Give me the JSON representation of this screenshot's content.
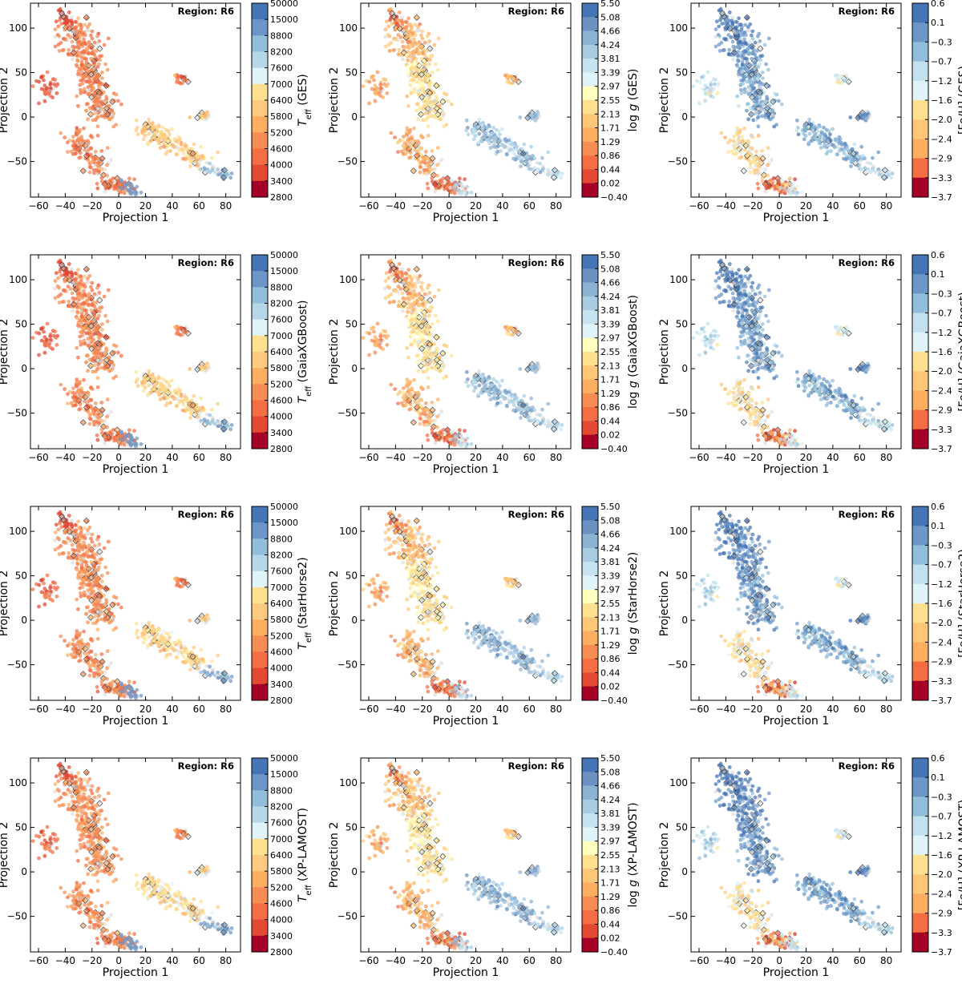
{
  "chart_data": {
    "type": "scatter",
    "layout": "4x3 grid",
    "xlabel": "Projection 1",
    "ylabel": "Projection 2",
    "xlim": [
      -66,
      91
    ],
    "ylim": [
      -90,
      128
    ],
    "xticks": [
      -60,
      -40,
      -20,
      0,
      20,
      40,
      60,
      80
    ],
    "yticks": [
      -50,
      0,
      50,
      100
    ],
    "region_text": "Region:  R6",
    "sources": [
      "GES",
      "GaiaXGBoost",
      "StarHorse2",
      "XP-LAMOST"
    ],
    "parameters": [
      {
        "key": "teff",
        "label_prefix": "T",
        "label_sub": "eff",
        "ticks": [
          "50000",
          "15000",
          "8800",
          "8200",
          "7600",
          "7000",
          "6400",
          "5800",
          "5200",
          "4600",
          "4000",
          "3400",
          "2800"
        ],
        "colors": [
          "#4575b4",
          "#6d96c8",
          "#91bfdb",
          "#b6d7e8",
          "#e0f3f8",
          "#fee090",
          "#fec980",
          "#fdae61",
          "#f68d52",
          "#f46d43",
          "#e34933",
          "#d73027",
          "#a50026"
        ]
      },
      {
        "key": "logg",
        "label_prefix": "log ",
        "label_ital": "g",
        "ticks": [
          "5.50",
          "5.08",
          "4.66",
          "4.24",
          "3.81",
          "3.39",
          "2.97",
          "2.55",
          "2.13",
          "1.71",
          "1.29",
          "0.86",
          "0.44",
          "0.02",
          "-0.40"
        ],
        "colors": [
          "#4575b4",
          "#6c92c4",
          "#8cb2d4",
          "#a8cde3",
          "#c7e3ef",
          "#e0f3f8",
          "#ffffbf",
          "#fee090",
          "#fdc777",
          "#fdae61",
          "#f68d52",
          "#f46d43",
          "#e34933",
          "#d73027",
          "#a50026"
        ]
      },
      {
        "key": "feh",
        "label_prefix": "[Fe/H]",
        "ticks": [
          "0.6",
          "0.1",
          "-0.3",
          "-0.7",
          "-1.2",
          "-1.6",
          "-2.0",
          "-2.4",
          "-2.9",
          "-3.3",
          "-3.7"
        ],
        "colors": [
          "#4575b4",
          "#6c97c7",
          "#91bfdb",
          "#c2e1ed",
          "#e0f3f8",
          "#fee090",
          "#fdc777",
          "#fdae61",
          "#f46d43",
          "#d73027",
          "#a50026"
        ]
      }
    ],
    "clusters": [
      {
        "name": "upper-left-arm",
        "x": [
          -35,
          -22
        ],
        "y": [
          108,
          58
        ],
        "n": 150,
        "spread": 7,
        "teff": 4700,
        "logg": 1.9,
        "feh": 0.25
      },
      {
        "name": "upper-arm-tip",
        "x": [
          -44,
          -38
        ],
        "y": [
          120,
          102
        ],
        "n": 30,
        "spread": 3,
        "teff": 3700,
        "logg": 1.2,
        "feh": 0.3
      },
      {
        "name": "central-column",
        "x": [
          -24,
          -12
        ],
        "y": [
          60,
          -2
        ],
        "n": 220,
        "spread": 6,
        "teff": 4800,
        "logg": 2.6,
        "feh": 0.0
      },
      {
        "name": "left-patch",
        "x": [
          -57,
          -50
        ],
        "y": [
          46,
          20
        ],
        "n": 40,
        "spread": 4,
        "teff": 4000,
        "logg": 1.6,
        "feh": -0.8
      },
      {
        "name": "lower-left-group",
        "x": [
          -30,
          -15
        ],
        "y": [
          -18,
          -62
        ],
        "n": 120,
        "spread": 5,
        "teff": 4700,
        "logg": 1.8,
        "feh": -1.6
      },
      {
        "name": "bottom-group",
        "x": [
          -12,
          8
        ],
        "y": [
          -72,
          -82
        ],
        "n": 70,
        "spread": 4,
        "teff": 4500,
        "logg": 1.0,
        "feh": -2.6
      },
      {
        "name": "diagonal-dwarf-band",
        "x": [
          18,
          62
        ],
        "y": [
          -10,
          -50
        ],
        "n": 190,
        "spread": 5,
        "teff": 6300,
        "logg": 4.3,
        "feh": -0.2
      },
      {
        "name": "small-cluster-right",
        "x": [
          60,
          66
        ],
        "y": [
          2,
          2
        ],
        "n": 24,
        "spread": 2.5,
        "teff": 6500,
        "logg": 4.5,
        "feh": 0.3
      },
      {
        "name": "upper-right-blob",
        "x": [
          44,
          50
        ],
        "y": [
          46,
          40
        ],
        "n": 22,
        "spread": 2.5,
        "teff": 4500,
        "logg": 2.0,
        "feh": -1.0
      },
      {
        "name": "lower-right-group",
        "x": [
          65,
          84
        ],
        "y": [
          -57,
          -67
        ],
        "n": 35,
        "spread": 3,
        "teff": 9000,
        "logg": 4.1,
        "feh": -0.6
      },
      {
        "name": "hot-bottom-group",
        "x": [
          4,
          14
        ],
        "y": [
          -74,
          -86
        ],
        "n": 25,
        "spread": 2.5,
        "teff": 12000,
        "logg": 3.9,
        "feh": -1.0
      }
    ]
  }
}
